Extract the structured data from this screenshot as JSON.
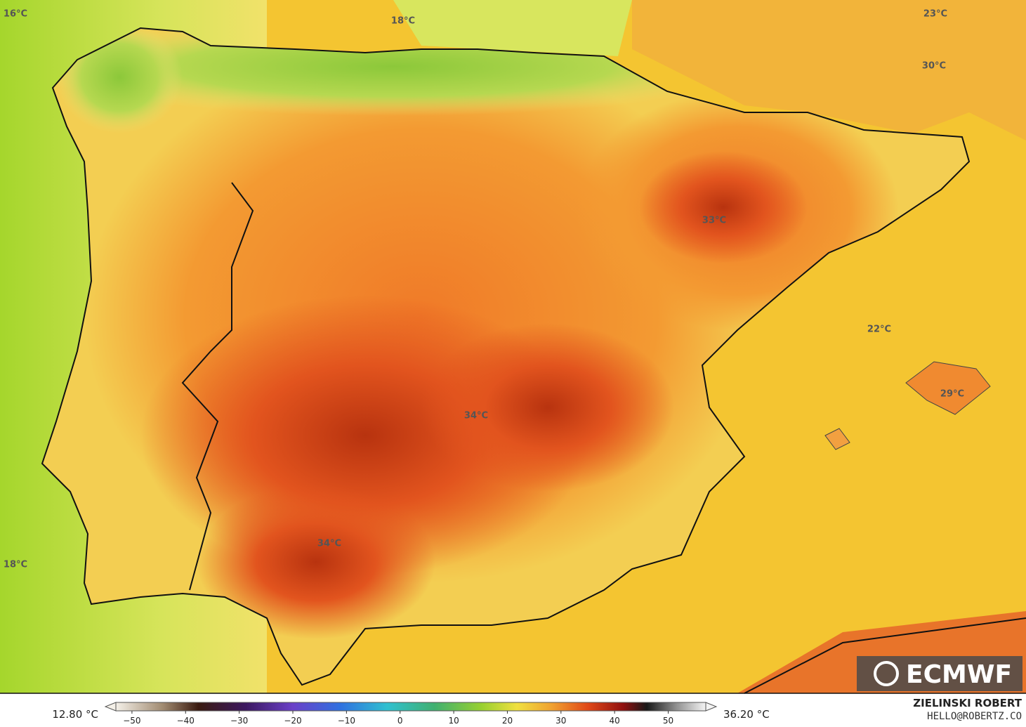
{
  "map": {
    "labels": [
      "16°C",
      "18°C",
      "23°C",
      "30°C",
      "33°C",
      "22°C",
      "29°C",
      "34°C",
      "34°C",
      "18°C"
    ]
  },
  "colorbar": {
    "min_label": "12.80 °C",
    "max_label": "36.20 °C",
    "lim": [
      -53,
      57
    ],
    "ticks": [
      {
        "value": -50,
        "label": "−50"
      },
      {
        "value": -40,
        "label": "−40"
      },
      {
        "value": -30,
        "label": "−30"
      },
      {
        "value": -20,
        "label": "−20"
      },
      {
        "value": -10,
        "label": "−10"
      },
      0,
      10,
      20,
      30,
      40,
      50
    ]
  },
  "credits": {
    "author": "ZIELINSKI ROBERT",
    "contact": "HELLO@ROBERTZ.CO"
  },
  "logo": "ECMWF"
}
